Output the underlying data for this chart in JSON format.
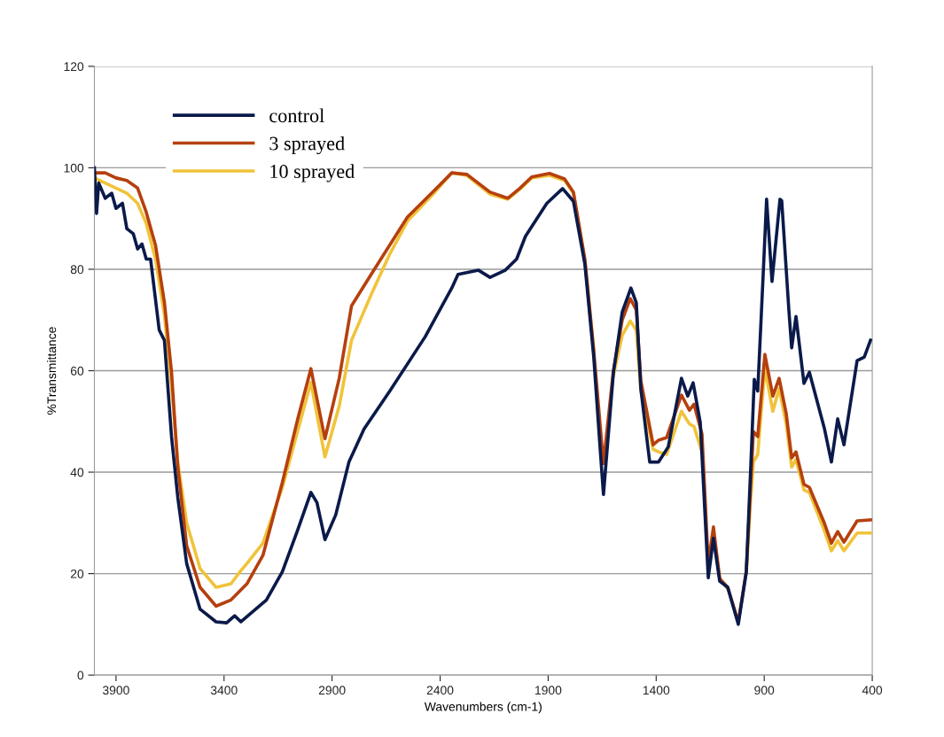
{
  "chart_data": {
    "type": "line",
    "xlabel": "Wavenumbers (cm-1)",
    "ylabel": "%Transmittance",
    "xlim": [
      4000,
      400
    ],
    "xticks": [
      3900,
      3400,
      2900,
      2400,
      1900,
      1400,
      900,
      400
    ],
    "ylim": [
      0,
      120
    ],
    "yticks": [
      0,
      20,
      40,
      60,
      80,
      100,
      120
    ],
    "grid": "y",
    "legend": "top left",
    "marker": "none",
    "line_style": "solid",
    "series": [
      {
        "name": "control",
        "color": "#0a1a4a",
        "x": [
          4000,
          3990,
          3980,
          3950,
          3920,
          3900,
          3870,
          3850,
          3820,
          3800,
          3780,
          3760,
          3740,
          3720,
          3700,
          3676,
          3643,
          3614,
          3573,
          3511,
          3437,
          3388,
          3351,
          3322,
          3204,
          3130,
          3060,
          2998,
          2970,
          2933,
          2883,
          2822,
          2752,
          2633,
          2469,
          2346,
          2317,
          2222,
          2169,
          2099,
          2046,
          2005,
          1906,
          1833,
          1783,
          1730,
          1689,
          1660,
          1644,
          1598,
          1557,
          1517,
          1492,
          1471,
          1430,
          1389,
          1344,
          1283,
          1254,
          1229,
          1196,
          1159,
          1135,
          1106,
          1069,
          1020,
          983,
          962,
          946,
          930,
          905,
          889,
          864,
          827,
          819,
          786,
          773,
          753,
          716,
          691,
          622,
          589,
          560,
          531,
          470,
          437,
          408
        ],
        "values": [
          100,
          91,
          97,
          94,
          95,
          92,
          93,
          88,
          87,
          84,
          85,
          82,
          82,
          75,
          68,
          66,
          47,
          35,
          22,
          13,
          10.5,
          10.3,
          11.7,
          10.5,
          14.8,
          20.4,
          28.5,
          36,
          34,
          26.7,
          31.6,
          42,
          48.5,
          56,
          66.7,
          76.3,
          79,
          79.8,
          78.4,
          79.8,
          82,
          86.5,
          93,
          95.9,
          93.4,
          81,
          62.7,
          45,
          35.6,
          59.6,
          71.6,
          76.3,
          73.4,
          56.4,
          42,
          42,
          45,
          58.5,
          55,
          57.6,
          49.8,
          19.2,
          27,
          18.5,
          17.3,
          10,
          20.3,
          41.4,
          58.3,
          56,
          78.8,
          93.8,
          77.6,
          93.8,
          93.5,
          72,
          64.5,
          70.7,
          57.5,
          59.7,
          48.7,
          42,
          50.5,
          45.4,
          62,
          62.7,
          66
        ]
      },
      {
        "name": "3 sprayed",
        "color": "#b5400e",
        "x": [
          4000,
          3950,
          3900,
          3850,
          3800,
          3762,
          3717,
          3676,
          3643,
          3614,
          3573,
          3511,
          3437,
          3368,
          3294,
          3220,
          3130,
          3060,
          2998,
          2933,
          2867,
          2810,
          2719,
          2551,
          2428,
          2346,
          2276,
          2169,
          2087,
          2030,
          1976,
          1894,
          1824,
          1783,
          1730,
          1689,
          1644,
          1598,
          1557,
          1520,
          1492,
          1471,
          1414,
          1389,
          1352,
          1283,
          1246,
          1225,
          1188,
          1159,
          1135,
          1106,
          1069,
          1020,
          983,
          962,
          950,
          930,
          897,
          860,
          831,
          798,
          773,
          753,
          716,
          691,
          622,
          589,
          560,
          531,
          470,
          408
        ],
        "values": [
          99,
          99,
          98,
          97.5,
          96,
          91.5,
          84.7,
          73.5,
          59.7,
          41,
          25.5,
          17.3,
          13.6,
          14.8,
          18,
          23.6,
          38,
          50.3,
          60.4,
          46.6,
          58.5,
          72.8,
          79,
          90.3,
          95.5,
          99,
          98.7,
          95.2,
          94,
          96,
          98.2,
          98.9,
          97.8,
          95.2,
          82,
          64,
          41.7,
          60,
          70,
          74.2,
          72,
          58,
          45.4,
          46.3,
          46.8,
          55.2,
          52.2,
          53.4,
          47.5,
          22,
          29.2,
          19,
          17.3,
          10.5,
          20.5,
          38,
          48,
          47,
          63.2,
          55,
          58.5,
          51.5,
          42.8,
          44,
          37.6,
          37,
          30,
          26,
          28.3,
          26.2,
          30.4,
          30.6
        ]
      },
      {
        "name": "10 sprayed",
        "color": "#f0c33a",
        "x": [
          4000,
          3950,
          3900,
          3850,
          3800,
          3760,
          3717,
          3676,
          3643,
          3614,
          3573,
          3511,
          3437,
          3368,
          3322,
          3294,
          3220,
          3130,
          3060,
          2998,
          2933,
          2867,
          2810,
          2719,
          2633,
          2551,
          2428,
          2346,
          2276,
          2169,
          2087,
          2030,
          1976,
          1894,
          1824,
          1783,
          1730,
          1689,
          1644,
          1598,
          1557,
          1520,
          1492,
          1471,
          1414,
          1389,
          1352,
          1283,
          1246,
          1225,
          1188,
          1159,
          1135,
          1106,
          1069,
          1020,
          983,
          962,
          950,
          930,
          897,
          860,
          831,
          798,
          773,
          753,
          716,
          691,
          622,
          589,
          560,
          531,
          470,
          408
        ],
        "values": [
          98,
          97,
          96,
          95,
          93,
          89,
          82,
          71,
          57,
          42,
          30,
          21,
          17.3,
          18,
          20.6,
          22,
          26,
          37,
          48,
          57.7,
          43,
          53,
          66,
          75,
          83,
          89.5,
          95,
          99,
          98.5,
          94.8,
          93.8,
          95.8,
          98,
          98.5,
          97.5,
          95,
          81.5,
          64,
          null,
          59,
          67,
          69.8,
          68,
          56,
          44.5,
          44,
          43.5,
          52,
          49.5,
          49,
          44,
          null,
          28,
          19,
          17,
          null,
          20,
          35,
          42,
          43.5,
          60.5,
          52,
          56.5,
          49.5,
          41,
          42.5,
          36.5,
          36,
          28.5,
          24.5,
          26.5,
          24.5,
          28,
          28
        ]
      }
    ]
  }
}
